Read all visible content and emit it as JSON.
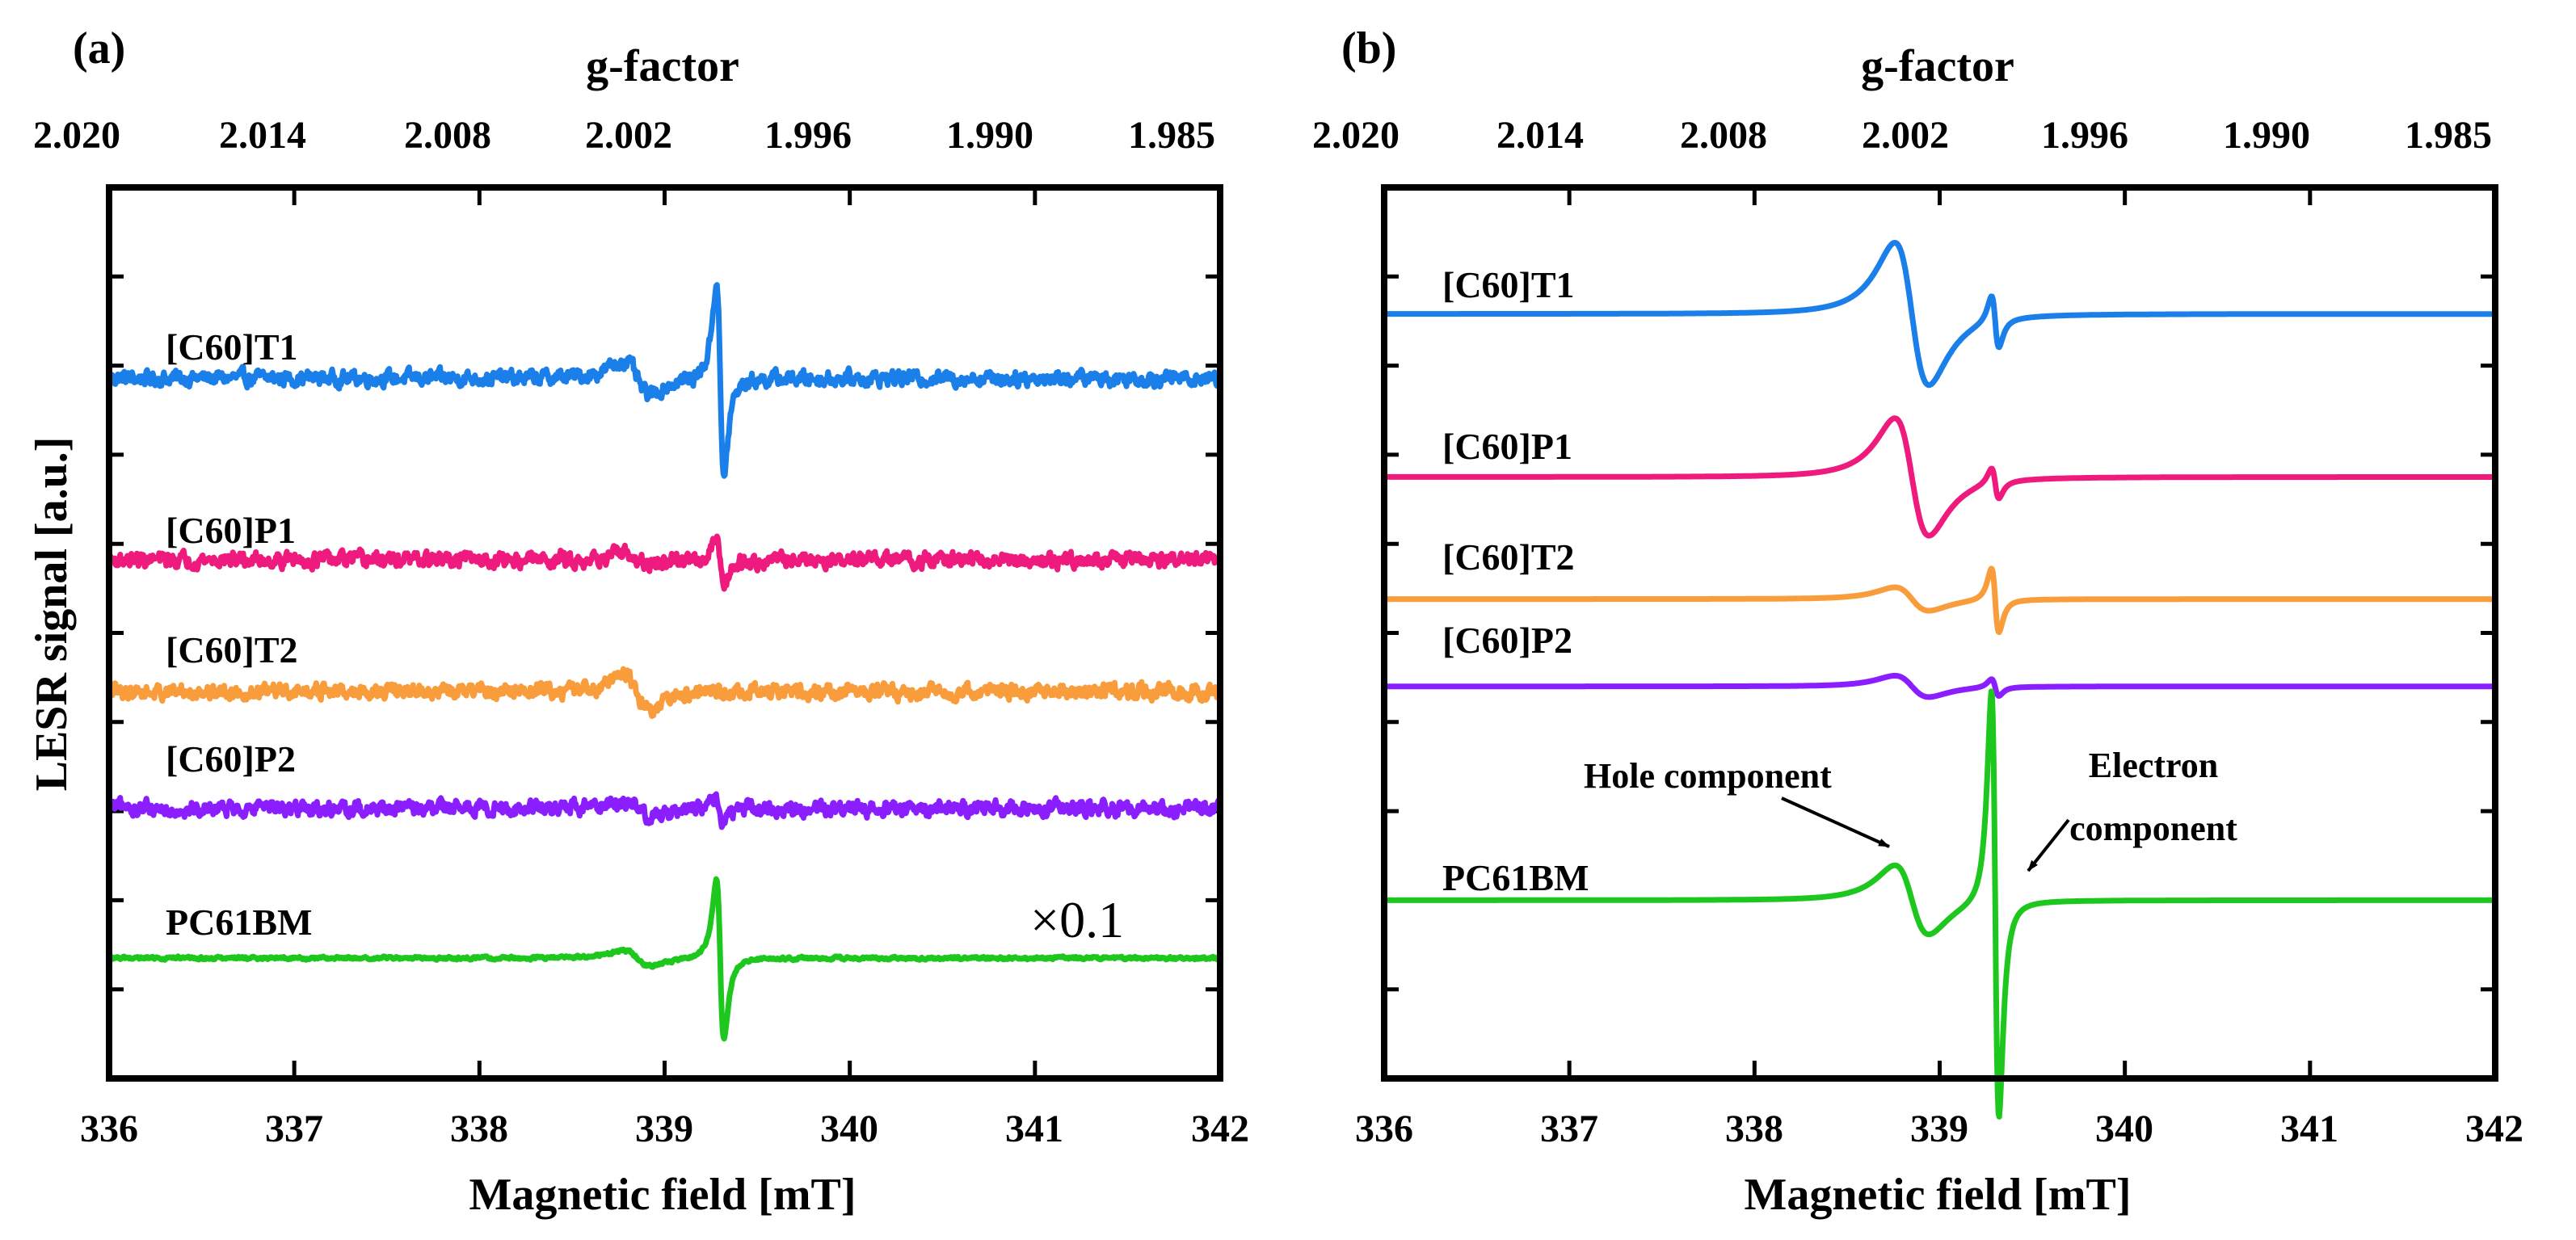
{
  "chart_data": [
    {
      "type": "line",
      "panel_label": "(a)",
      "xlabel": "Magnetic field [mT]",
      "ylabel": "LESR signal [a.u.]",
      "top_axis_label": "g-factor",
      "xlim": [
        336,
        342
      ],
      "x_ticks": [
        "336",
        "337",
        "338",
        "339",
        "340",
        "341",
        "342"
      ],
      "top_ticks": [
        "2.020",
        "2.014",
        "2.008",
        "2.002",
        "1.996",
        "1.990",
        "1.985"
      ],
      "scale_note": "×0.1",
      "series": [
        {
          "name": "[C60]T1",
          "color": "#1a7fe8",
          "baseline": 0.786,
          "noise": 0.006,
          "holeAmp": 0.35,
          "elecAmp": 1.0,
          "holeShape": 0.055,
          "elecShape": 0.11
        },
        {
          "name": "[C60]P1",
          "color": "#ef1a7e",
          "baseline": 0.582,
          "noise": 0.006,
          "holeAmp": 0.28,
          "elecAmp": 0.52,
          "holeShape": 0.02,
          "elecShape": 0.053
        },
        {
          "name": "[C60]T2",
          "color": "#f99d3c",
          "baseline": 0.434,
          "noise": 0.006,
          "holeAmp": 0.9,
          "elecAmp": 0.25,
          "holeShape": 0.022,
          "elecShape": 0.012
        },
        {
          "name": "[C60]P2",
          "color": "#8b1eff",
          "baseline": 0.303,
          "noise": 0.006,
          "holeAmp": 0.55,
          "elecAmp": 0.6,
          "holeShape": 0.014,
          "elecShape": 0.022
        },
        {
          "name": "PC61BM",
          "color": "#1ec71e",
          "baseline": 0.135,
          "noise": 0.0012,
          "holeAmp": 0.35,
          "elecAmp": 1.0,
          "holeShape": 0.025,
          "elecShape": 0.09
        }
      ]
    },
    {
      "type": "line",
      "panel_label": "(b)",
      "xlabel": "Magnetic field [mT]",
      "top_axis_label": "g-factor",
      "xlim": [
        336,
        342
      ],
      "x_ticks": [
        "336",
        "337",
        "338",
        "339",
        "340",
        "341",
        "342"
      ],
      "top_ticks": [
        "2.020",
        "2.014",
        "2.008",
        "2.002",
        "1.996",
        "1.990",
        "1.985"
      ],
      "annotations": [
        {
          "text": "Hole component",
          "points_to": "hole peak of PC61BM near 338.85 mT"
        },
        {
          "text": "Electron",
          "text2": "component",
          "points_to": "electron peak of PC61BM near 339.35 mT"
        }
      ],
      "series": [
        {
          "name": "[C60]T1",
          "color": "#1a7fe8",
          "baseline": 0.858,
          "noise": 0,
          "holeAmp": 1.0,
          "elecAmp": 0.55,
          "holeShape": 0.08,
          "elecShape": 0.054
        },
        {
          "name": "[C60]P1",
          "color": "#ef1a7e",
          "baseline": 0.675,
          "noise": 0,
          "holeAmp": 1.0,
          "elecAmp": 0.55,
          "holeShape": 0.066,
          "elecShape": 0.032
        },
        {
          "name": "[C60]T2",
          "color": "#f99d3c",
          "baseline": 0.538,
          "noise": 0,
          "holeAmp": 0.6,
          "elecAmp": 1.0,
          "holeShape": 0.022,
          "elecShape": 0.036
        },
        {
          "name": "[C60]P2",
          "color": "#8b1eff",
          "baseline": 0.44,
          "noise": 0,
          "holeAmp": 1.0,
          "elecAmp": 0.8,
          "holeShape": 0.012,
          "elecShape": 0.012
        },
        {
          "name": "PC61BM",
          "color": "#1ec71e",
          "baseline": 0.2,
          "noise": 0,
          "holeAmp": 0.5,
          "elecAmp": 1.0,
          "holeShape": 0.078,
          "elecShape": 0.24
        }
      ]
    }
  ]
}
